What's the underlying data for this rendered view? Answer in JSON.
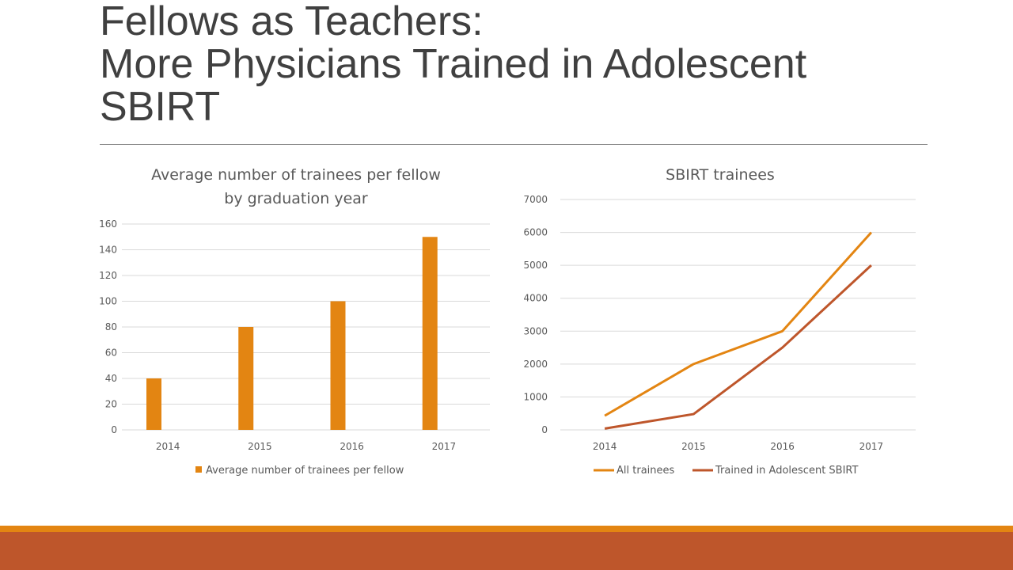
{
  "slide": {
    "title_line1": "Fellows as Teachers:",
    "title_line2": "More Physicians Trained in Adolescent",
    "title_line3": "SBIRT"
  },
  "colors": {
    "orange": "#E38512",
    "rust": "#BE562B",
    "grid": "#d9d9d9",
    "text": "#595959"
  },
  "chart_data": [
    {
      "type": "bar",
      "title_line1": "Average number of trainees per fellow",
      "title_line2": "by graduation year",
      "categories": [
        "2014",
        "2015",
        "2016",
        "2017"
      ],
      "series": [
        {
          "name": "Average number of trainees per fellow",
          "values": [
            40,
            80,
            100,
            150
          ],
          "color": "#E38512"
        }
      ],
      "ylim": [
        0,
        160
      ],
      "yticks": [
        0,
        20,
        40,
        60,
        80,
        100,
        120,
        140,
        160
      ],
      "grid": true,
      "legend": "bottom"
    },
    {
      "type": "line",
      "title": "SBIRT trainees",
      "categories": [
        "2014",
        "2015",
        "2016",
        "2017"
      ],
      "series": [
        {
          "name": "All trainees",
          "values": [
            430,
            2000,
            3000,
            6000
          ],
          "color": "#E38512"
        },
        {
          "name": "Trained in Adolescent SBIRT",
          "values": [
            40,
            480,
            2500,
            5000
          ],
          "color": "#BE562B"
        }
      ],
      "ylim": [
        0,
        7000
      ],
      "yticks": [
        0,
        1000,
        2000,
        3000,
        4000,
        5000,
        6000,
        7000
      ],
      "grid": true,
      "legend": "bottom"
    }
  ]
}
